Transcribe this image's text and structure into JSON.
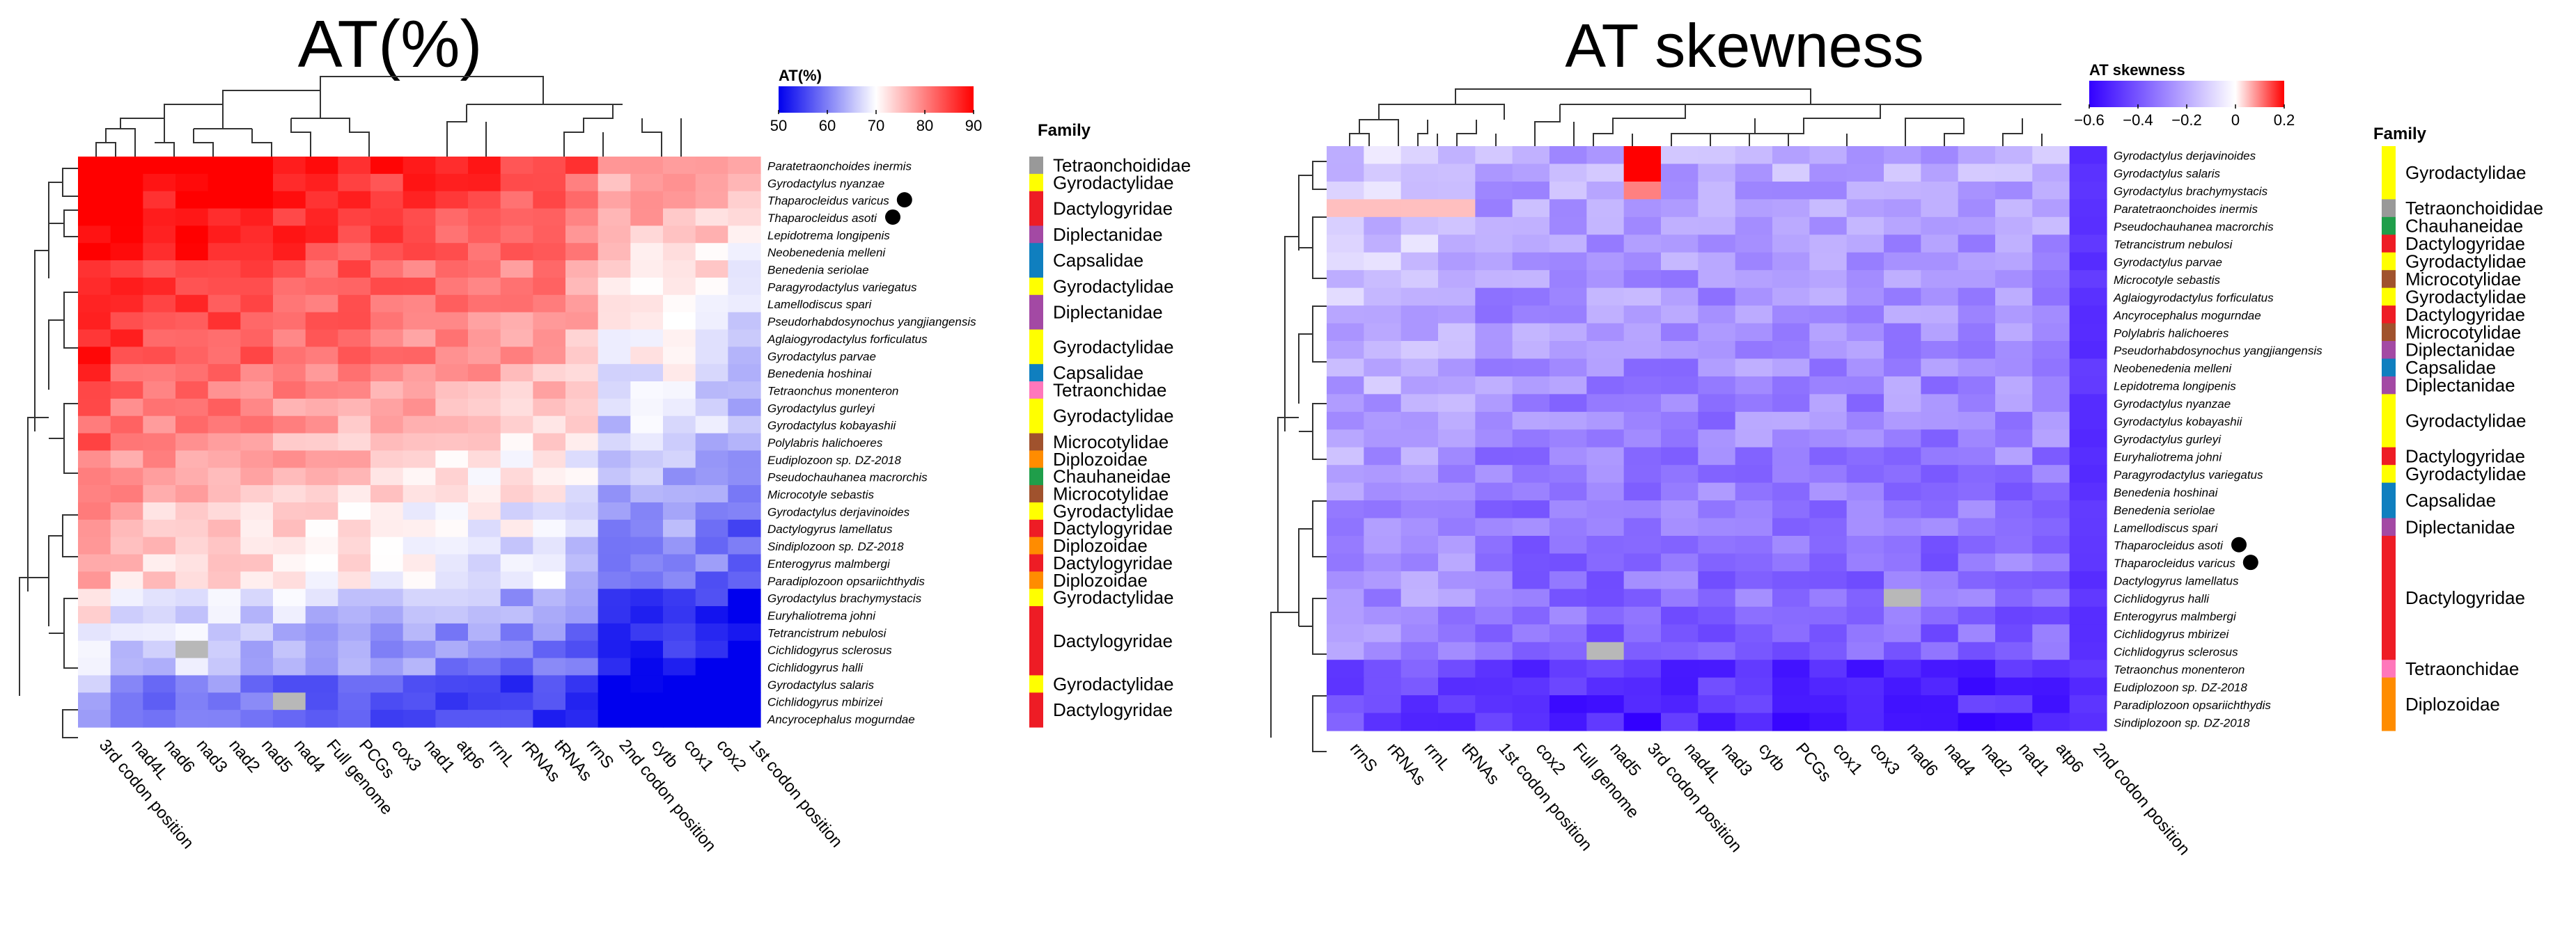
{
  "panels": [
    {
      "title": "AT(%)",
      "legend_title": "AT(%)",
      "legend_ticks": [
        "50",
        "60",
        "70",
        "80",
        "90"
      ],
      "family_header": "Family",
      "chart_data": {
        "type": "heatmap",
        "title": "AT(%)",
        "value_range": [
          50,
          90
        ],
        "colormap": [
          "#0000ee",
          "#ffffff",
          "#ff0000"
        ],
        "columns": [
          "3rd codon position",
          "nad4L",
          "nad6",
          "nad3",
          "nad2",
          "nad5",
          "nad4",
          "Full genome",
          "PCGs",
          "cox3",
          "nad1",
          "atp6",
          "rrnL",
          "rRNAs",
          "tRNAs",
          "rrnS",
          "2nd codon position",
          "cytb",
          "cox1",
          "cox2",
          "1st codon position"
        ],
        "rows": [
          "Paratetraonchoides inermis",
          "Gyrodactylus nyanzae",
          "Thaparocleidus varicus",
          "Thaparocleidus asoti",
          "Lepidotrema longipenis",
          "Neobenedenia melleni",
          "Benedenia seriolae",
          "Paragyrodactylus variegatus",
          "Lamellodiscus spari",
          "Pseudorhabdosynochus yangjiangensis",
          "Aglaiogyrodactylus forficulatus",
          "Gyrodactylus parvae",
          "Benedenia hoshinai",
          "Tetraonchus monenteron",
          "Gyrodactylus gurleyi",
          "Gyrodactylus kobayashii",
          "Polylabris halichoeres",
          "Eudiplozoon sp. DZ-2018",
          "Pseudochauhanea macrorchis",
          "Microcotyle sebastis",
          "Gyrodactylus derjavinoides",
          "Dactylogyrus lamellatus",
          "Sindiplozoon sp. DZ-2018",
          "Enterogyrus malmbergi",
          "Paradiplozoon opsariichthydis",
          "Gyrodactylus brachymystacis",
          "Euryhaliotrema johni",
          "Tetrancistrum nebulosi",
          "Cichlidogyrus sclerosus",
          "Cichlidogyrus halli",
          "Gyrodactylus salaris",
          "Cichlidogyrus mbirizei",
          "Ancyrocephalus mogurndae"
        ],
        "row_base": [
          87,
          85,
          84,
          84,
          83,
          82,
          81,
          81,
          80,
          80,
          79,
          79,
          77,
          76,
          75,
          75,
          74,
          73,
          72,
          72,
          70,
          70,
          69,
          69,
          68,
          64,
          63,
          62,
          61,
          61,
          56,
          55,
          55
        ],
        "family_groups": [
          {
            "name": "Tetraonchoididae",
            "color": "#999999",
            "count": 1
          },
          {
            "name": "Gyrodactylidae",
            "color": "#ffff00",
            "count": 1
          },
          {
            "name": "Dactylogyridae",
            "color": "#ee1c25",
            "count": 2
          },
          {
            "name": "Diplectanidae",
            "color": "#a349a4",
            "count": 1
          },
          {
            "name": "Capsalidae",
            "color": "#0f7fbf",
            "count": 2
          },
          {
            "name": "Gyrodactylidae",
            "color": "#ffff00",
            "count": 1
          },
          {
            "name": "Diplectanidae",
            "color": "#a349a4",
            "count": 2
          },
          {
            "name": "Gyrodactylidae",
            "color": "#ffff00",
            "count": 2
          },
          {
            "name": "Capsalidae",
            "color": "#0f7fbf",
            "count": 1
          },
          {
            "name": "Tetraonchidae",
            "color": "#ff77bb",
            "count": 1
          },
          {
            "name": "Gyrodactylidae",
            "color": "#ffff00",
            "count": 2
          },
          {
            "name": "Microcotylidae",
            "color": "#a0522d",
            "count": 1
          },
          {
            "name": "Diplozoidae",
            "color": "#ff8c00",
            "count": 1
          },
          {
            "name": "Chauhaneidae",
            "color": "#1f9e4a",
            "count": 1
          },
          {
            "name": "Microcotylidae",
            "color": "#a0522d",
            "count": 1
          },
          {
            "name": "Gyrodactylidae",
            "color": "#ffff00",
            "count": 1
          },
          {
            "name": "Dactylogyridae",
            "color": "#ee1c25",
            "count": 1
          },
          {
            "name": "Diplozoidae",
            "color": "#ff8c00",
            "count": 1
          },
          {
            "name": "Dactylogyridae",
            "color": "#ee1c25",
            "count": 1
          },
          {
            "name": "Diplozoidae",
            "color": "#ff8c00",
            "count": 1
          },
          {
            "name": "Gyrodactylidae",
            "color": "#ffff00",
            "count": 1
          },
          {
            "name": "Dactylogyridae",
            "color": "#ee1c25",
            "count": 4
          },
          {
            "name": "Gyrodactylidae",
            "color": "#ffff00",
            "count": 1
          },
          {
            "name": "Dactylogyridae",
            "color": "#ee1c25",
            "count": 2
          }
        ],
        "marked_rows": [
          "Thaparocleidus varicus",
          "Thaparocleidus asoti"
        ]
      }
    },
    {
      "title": "AT skewness",
      "legend_title": "AT skewness",
      "legend_ticks": [
        "−0.6",
        "−0.4",
        "−0.2",
        "0",
        "0.2"
      ],
      "family_header": "Family",
      "chart_data": {
        "type": "heatmap",
        "title": "AT skewness",
        "value_range": [
          -0.6,
          0.2
        ],
        "colormap": [
          "#3300ff",
          "#ffffff",
          "#ff0000"
        ],
        "columns": [
          "rrnS",
          "rRNAs",
          "rrnL",
          "tRNAs",
          "1st codon position",
          "cox2",
          "Full genome",
          "nad5",
          "3rd codon position",
          "nad4L",
          "nad3",
          "cytb",
          "PCGs",
          "cox1",
          "cox3",
          "nad6",
          "nad4",
          "nad2",
          "nad1",
          "atp6",
          "2nd codon position"
        ],
        "rows": [
          "Gyrodactylus derjavinoides",
          "Gyrodactylus salaris",
          "Gyrodactylus brachymystacis",
          "Paratetraonchoides inermis",
          "Pseudochauhanea macrorchis",
          "Tetrancistrum nebulosi",
          "Gyrodactylus parvae",
          "Microcotyle sebastis",
          "Aglaiogyrodactylus forficulatus",
          "Ancyrocephalus mogurndae",
          "Polylabris halichoeres",
          "Pseudorhabdosynochus yangjiangensis",
          "Neobenedenia melleni",
          "Lepidotrema longipenis",
          "Gyrodactylus nyanzae",
          "Gyrodactylus kobayashii",
          "Gyrodactylus gurleyi",
          "Euryhaliotrema johni",
          "Paragyrodactylus variegatus",
          "Benedenia hoshinai",
          "Benedenia seriolae",
          "Lamellodiscus spari",
          "Thaparocleidus asoti",
          "Thaparocleidus varicus",
          "Dactylogyrus lamellatus",
          "Cichlidogyrus halli",
          "Enterogyrus malmbergi",
          "Cichlidogyrus mbirizei",
          "Cichlidogyrus sclerosus",
          "Tetraonchus monenteron",
          "Eudiplozoon sp. DZ-2018",
          "Paradiplozoon opsariichthydis",
          "Sindiplozoon sp. DZ-2018"
        ],
        "family_groups": [
          {
            "name": "Gyrodactylidae",
            "color": "#ffff00",
            "count": 3
          },
          {
            "name": "Tetraonchoididae",
            "color": "#999999",
            "count": 1
          },
          {
            "name": "Chauhaneidae",
            "color": "#1f9e4a",
            "count": 1
          },
          {
            "name": "Dactylogyridae",
            "color": "#ee1c25",
            "count": 1
          },
          {
            "name": "Gyrodactylidae",
            "color": "#ffff00",
            "count": 1
          },
          {
            "name": "Microcotylidae",
            "color": "#a0522d",
            "count": 1
          },
          {
            "name": "Gyrodactylidae",
            "color": "#ffff00",
            "count": 1
          },
          {
            "name": "Dactylogyridae",
            "color": "#ee1c25",
            "count": 1
          },
          {
            "name": "Microcotylidae",
            "color": "#a0522d",
            "count": 1
          },
          {
            "name": "Diplectanidae",
            "color": "#a349a4",
            "count": 1
          },
          {
            "name": "Capsalidae",
            "color": "#0f7fbf",
            "count": 1
          },
          {
            "name": "Diplectanidae",
            "color": "#a349a4",
            "count": 1
          },
          {
            "name": "Gyrodactylidae",
            "color": "#ffff00",
            "count": 3
          },
          {
            "name": "Dactylogyridae",
            "color": "#ee1c25",
            "count": 1
          },
          {
            "name": "Gyrodactylidae",
            "color": "#ffff00",
            "count": 1
          },
          {
            "name": "Capsalidae",
            "color": "#0f7fbf",
            "count": 2
          },
          {
            "name": "Diplectanidae",
            "color": "#a349a4",
            "count": 1
          },
          {
            "name": "Dactylogyridae",
            "color": "#ee1c25",
            "count": 7
          },
          {
            "name": "Tetraonchidae",
            "color": "#ff77bb",
            "count": 1
          },
          {
            "name": "Diplozoidae",
            "color": "#ff8c00",
            "count": 3
          }
        ],
        "marked_rows": [
          "Thaparocleidus asoti",
          "Thaparocleidus varicus"
        ]
      }
    }
  ]
}
